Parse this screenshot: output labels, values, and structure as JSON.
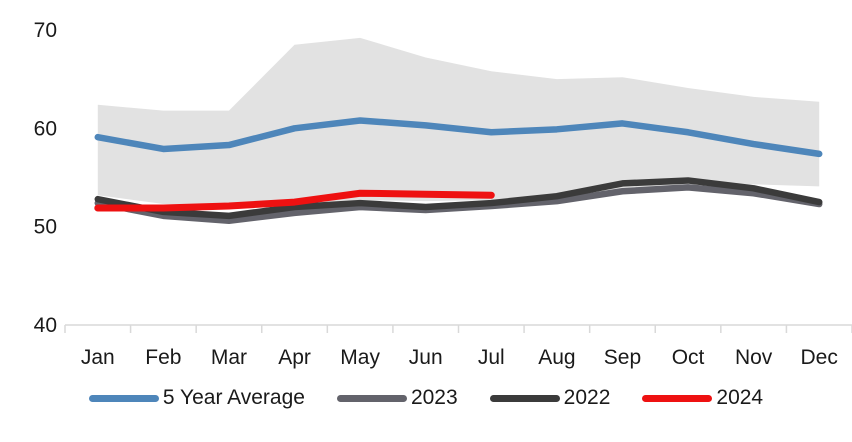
{
  "chart_data": {
    "type": "line",
    "title": "",
    "categories": [
      "Jan",
      "Feb",
      "Mar",
      "Apr",
      "May",
      "Jun",
      "Jul",
      "Aug",
      "Sep",
      "Oct",
      "Nov",
      "Dec"
    ],
    "ylim": [
      40,
      70
    ],
    "yticks": [
      40,
      50,
      60,
      70
    ],
    "grid": false,
    "legend_position": "bottom",
    "band": {
      "name": "5-year range",
      "color": "#e2e2e2",
      "upper": [
        62.4,
        61.8,
        61.8,
        68.5,
        69.2,
        67.2,
        65.8,
        65.0,
        65.2,
        64.1,
        63.2,
        62.7
      ],
      "lower": [
        53.2,
        52.3,
        52.1,
        52.3,
        52.7,
        52.6,
        52.7,
        53.1,
        53.8,
        54.3,
        54.3,
        54.1
      ]
    },
    "series": [
      {
        "name": "5 Year Average",
        "color": "#4E86BA",
        "width": 6.5,
        "values": [
          59.1,
          57.9,
          58.3,
          60.0,
          60.8,
          60.3,
          59.6,
          59.9,
          60.5,
          59.6,
          58.4,
          57.4
        ]
      },
      {
        "name": "2023",
        "color": "#63636B",
        "width": 6.5,
        "values": [
          52.4,
          51.1,
          50.6,
          51.4,
          52.0,
          51.7,
          52.1,
          52.6,
          53.6,
          54.0,
          53.4,
          52.3
        ]
      },
      {
        "name": "2022",
        "color": "#3B3B3B",
        "width": 6.5,
        "values": [
          52.8,
          51.5,
          51.1,
          52.0,
          52.4,
          52.0,
          52.4,
          53.1,
          54.4,
          54.7,
          53.9,
          52.5
        ]
      },
      {
        "name": "2024",
        "color": "#EE1111",
        "width": 7,
        "values": [
          51.9,
          51.9,
          52.1,
          52.5,
          53.4,
          53.3,
          53.2,
          null,
          null,
          null,
          null,
          null
        ]
      }
    ],
    "axis_color": "#d9d9d9",
    "text_color": "#1a1a1a"
  }
}
